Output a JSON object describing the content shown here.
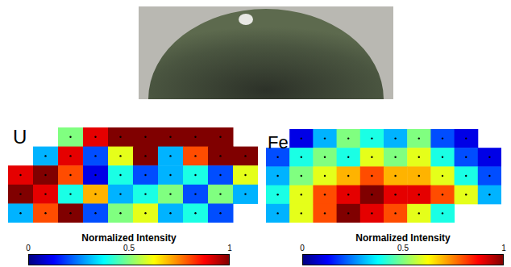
{
  "chart_data": [
    {
      "type": "heatmap",
      "title": "U",
      "tick_labels": false,
      "cells": [
        [
          null,
          null,
          0.5,
          0.9,
          1.0,
          1.0,
          1.0,
          1.0,
          1.0,
          null
        ],
        [
          null,
          0.3,
          0.9,
          0.2,
          0.6,
          1.0,
          0.3,
          0.8,
          1.0,
          1.0
        ],
        [
          0.9,
          1.0,
          0.8,
          0.1,
          0.4,
          0.2,
          0.3,
          0.4,
          0.2,
          0.6
        ],
        [
          1.0,
          0.9,
          0.4,
          0.7,
          0.3,
          0.4,
          0.5,
          0.2,
          0.5,
          0.3
        ],
        [
          0.3,
          0.8,
          1.0,
          0.2,
          0.5,
          0.6,
          0.3,
          0.4,
          0.2,
          null
        ]
      ],
      "colorbar": {
        "label": "Normalized Intensity",
        "range": [
          0,
          1
        ],
        "ticks": [
          0,
          0.5,
          1
        ]
      }
    },
    {
      "type": "heatmap",
      "title": "Fe",
      "tick_labels": false,
      "cells": [
        [
          null,
          0.1,
          0.3,
          0.5,
          0.4,
          0.3,
          0.5,
          0.2,
          0.1,
          null
        ],
        [
          0.2,
          0.4,
          0.5,
          0.4,
          0.6,
          0.5,
          0.6,
          0.4,
          0.2,
          0.1
        ],
        [
          0.3,
          0.5,
          0.6,
          0.7,
          0.8,
          0.7,
          0.7,
          0.6,
          0.4,
          0.2
        ],
        [
          0.4,
          0.6,
          0.8,
          0.9,
          1.0,
          0.9,
          0.9,
          0.8,
          0.6,
          0.3
        ],
        [
          0.3,
          0.6,
          0.8,
          1.0,
          0.9,
          0.8,
          0.6,
          0.4,
          null,
          null
        ]
      ],
      "colorbar": {
        "label": "Normalized Intensity",
        "range": [
          0,
          1
        ],
        "ticks": [
          0,
          0.5,
          1
        ]
      }
    }
  ]
}
